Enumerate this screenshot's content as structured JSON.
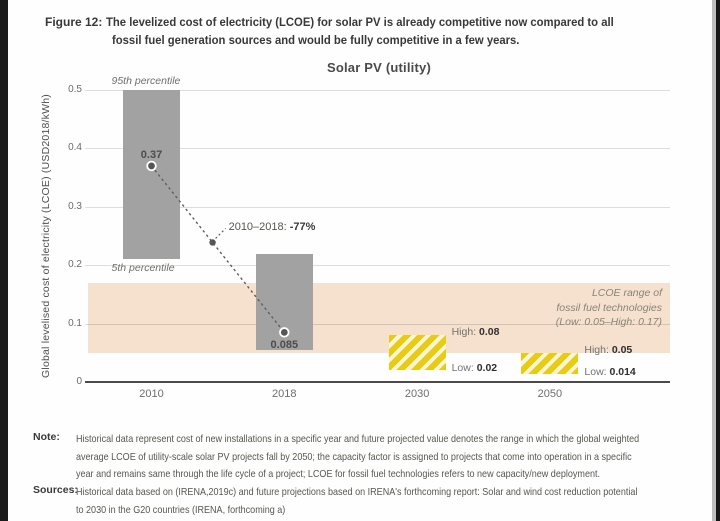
{
  "figure": {
    "label": "Figure 12:",
    "title_lines": [
      "The levelized cost of electricity (LCOE) for solar PV is already competitive now compared to all",
      "fossil fuel generation sources and would be fully competitive in a few years."
    ]
  },
  "chart_data": {
    "type": "bar",
    "title": "Solar PV (utility)",
    "ylabel": "Global levelised cost of electricity (LCOE) (USD2018/kWh)",
    "ylim": [
      0,
      0.5
    ],
    "grid": true,
    "yticks": [
      {
        "value": 0,
        "label": "0"
      },
      {
        "value": 0.1,
        "label": "0.1"
      },
      {
        "value": 0.2,
        "label": "0.2"
      },
      {
        "value": 0.3,
        "label": "0.3"
      },
      {
        "value": 0.4,
        "label": "0.4"
      },
      {
        "value": 0.5,
        "label": "0.5"
      }
    ],
    "categories": [
      "2010",
      "2018",
      "2030",
      "2050"
    ],
    "bars": [
      {
        "year": "2010",
        "style": "solid",
        "high": 0.5,
        "low": 0.21,
        "percentile_high_label": "95th percentile",
        "percentile_low_label": "5th percentile",
        "marker": 0.37,
        "marker_label": "0.37",
        "marker_label_pos": "above"
      },
      {
        "year": "2018",
        "style": "solid",
        "high": 0.22,
        "low": 0.055,
        "marker": 0.085,
        "marker_label": "0.085",
        "marker_label_pos": "below"
      },
      {
        "year": "2030",
        "style": "hatch",
        "high": 0.08,
        "low": 0.02,
        "range_labels": {
          "high": {
            "prefix": "High: ",
            "value": "0.08"
          },
          "low": {
            "prefix": "Low: ",
            "value": "0.02"
          }
        }
      },
      {
        "year": "2050",
        "style": "hatch",
        "high": 0.05,
        "low": 0.014,
        "range_labels": {
          "high": {
            "prefix": "High: ",
            "value": "0.05"
          },
          "low": {
            "prefix": "Low: ",
            "value": "0.014"
          }
        }
      }
    ],
    "trend_annotation": {
      "prefix": "2010–2018: ",
      "value": "-77%"
    },
    "fossil_band": {
      "low": 0.05,
      "high": 0.17,
      "lines": [
        "LCOE range of",
        "fossil fuel technologies",
        "(Low: 0.05–High: 0.17)"
      ]
    }
  },
  "note": {
    "label": "Note:",
    "lines": [
      "Historical data represent cost of new installations in a specific year and future projected value denotes the range in which the global weighted",
      "average LCOE of utility-scale solar PV projects fall by 2050; the capacity factor is assigned to projects that come into operation in a specific",
      "year and remains same through the life cycle of a project; LCOE for fossil fuel technologies refers to new capacity/new deployment."
    ]
  },
  "sources": {
    "label": "Sources:",
    "lines": [
      "Historical data based on (IRENA,2019c) and future projections based on IRENA's forthcoming report: Solar and wind cost reduction potential",
      "to 2030 in the G20 countries (IRENA, forthcoming a)"
    ]
  },
  "colors": {
    "bar_gray": "#a2a2a2",
    "hatch_yellow": "#e6cc15",
    "hatch_light": "#fbf5d5",
    "band_pink": "#f5e1cd",
    "text_dark": "#3a3a3a"
  }
}
